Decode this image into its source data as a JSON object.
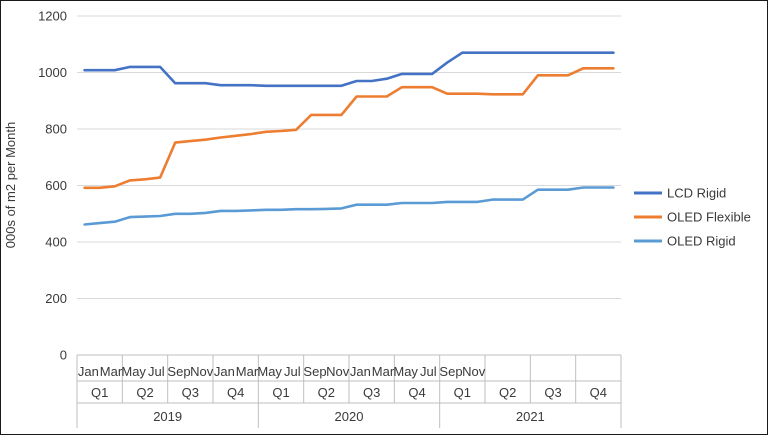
{
  "chart_data": {
    "type": "line",
    "ylabel": "000s of m2 per Month",
    "ylim": [
      0,
      1200
    ],
    "yticks": [
      0,
      200,
      400,
      600,
      800,
      1000,
      1200
    ],
    "grid": true,
    "legend_position": "right",
    "x_month_labels": [
      "Jan",
      "Mar",
      "May",
      "Jul",
      "Sep",
      "Nov",
      "Jan",
      "Mar",
      "May",
      "Jul",
      "Sep",
      "Nov",
      "Jan",
      "Mar",
      "May",
      "Jul",
      "Sep",
      "Nov"
    ],
    "x_quarter_labels": [
      "Q1",
      "Q2",
      "Q3",
      "Q4",
      "Q1",
      "Q2",
      "Q3",
      "Q4",
      "Q1",
      "Q2",
      "Q3",
      "Q4"
    ],
    "x_year_labels": [
      "2019",
      "2020",
      "2021"
    ],
    "x": [
      "2019-01",
      "2019-02",
      "2019-03",
      "2019-04",
      "2019-05",
      "2019-06",
      "2019-07",
      "2019-08",
      "2019-09",
      "2019-10",
      "2019-11",
      "2019-12",
      "2020-01",
      "2020-02",
      "2020-03",
      "2020-04",
      "2020-05",
      "2020-06",
      "2020-07",
      "2020-08",
      "2020-09",
      "2020-10",
      "2020-11",
      "2020-12",
      "2021-01",
      "2021-02",
      "2021-03",
      "2021-04",
      "2021-05",
      "2021-06",
      "2021-07",
      "2021-08",
      "2021-09",
      "2021-10",
      "2021-11",
      "2021-12"
    ],
    "series": [
      {
        "name": "LCD Rigid",
        "color": "#4472C4",
        "values": [
          1008,
          1008,
          1008,
          1020,
          1020,
          1020,
          962,
          962,
          962,
          955,
          955,
          955,
          953,
          953,
          953,
          953,
          953,
          953,
          970,
          970,
          978,
          995,
          995,
          995,
          1035,
          1070,
          1070,
          1070,
          1070,
          1070,
          1070,
          1070,
          1070,
          1070,
          1070,
          1070
        ]
      },
      {
        "name": "OLED Flexible",
        "color": "#ED7D31",
        "values": [
          592,
          592,
          597,
          618,
          622,
          628,
          752,
          757,
          762,
          770,
          776,
          782,
          790,
          793,
          797,
          850,
          850,
          850,
          915,
          915,
          915,
          948,
          948,
          948,
          925,
          925,
          925,
          923,
          923,
          923,
          990,
          990,
          990,
          1015,
          1015,
          1015
        ]
      },
      {
        "name": "OLED Rigid",
        "color": "#5B9BD5",
        "values": [
          462,
          467,
          472,
          488,
          490,
          492,
          500,
          500,
          503,
          510,
          510,
          512,
          514,
          514,
          516,
          516,
          517,
          519,
          532,
          532,
          532,
          538,
          538,
          538,
          542,
          542,
          542,
          550,
          550,
          550,
          585,
          585,
          585,
          593,
          593,
          593
        ]
      }
    ]
  }
}
